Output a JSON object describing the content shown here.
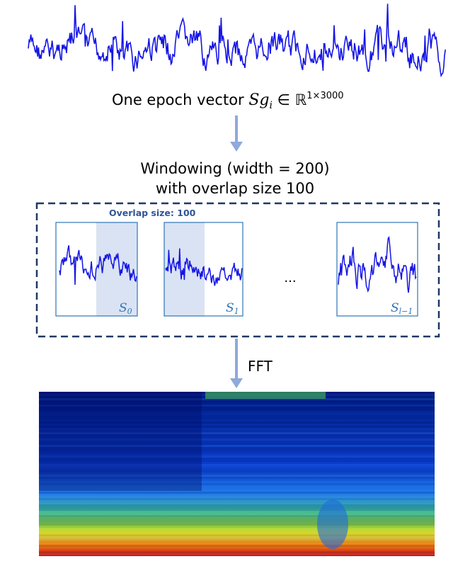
{
  "epoch_caption": {
    "prefix": "One epoch vector ",
    "symbol_base": "Sg",
    "symbol_sub": "i",
    "membership": " ∈ ℝ",
    "superscript": "1×3000"
  },
  "windowing_label": {
    "line1": "Windowing (width = 200)",
    "line2": "with overlap size 100"
  },
  "overlap_label": "Overlap size: 100",
  "ellipsis": "...",
  "windows": [
    {
      "base": "S",
      "sub": "0"
    },
    {
      "base": "S",
      "sub": "1"
    },
    {
      "base": "S",
      "sub": "l−1"
    }
  ],
  "fft_label": "FFT",
  "colors": {
    "signal": "#1414e6",
    "arrow": "#8ea9db",
    "dashed_border": "#1f3864",
    "window_border": "#2e75b6",
    "overlap_fill": "#dae3f3",
    "overlap_text": "#2f5597",
    "window_label": "#2e75b6"
  }
}
